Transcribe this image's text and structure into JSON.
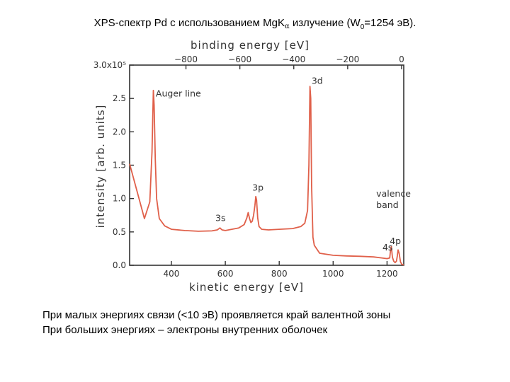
{
  "slide": {
    "title_prefix": "XPS-спектр Pd с использованием MgK",
    "title_alpha": "α",
    "title_mid": " излучение (W",
    "title_sub": "0",
    "title_suffix": "=1254 эВ).",
    "caption_1": "При малых энергиях связи (<10 эВ) проявляется край валентной зоны",
    "caption_2": "При больших энергиях – электроны внутренних оболочек"
  },
  "colors": {
    "spectrum": "#e0604a",
    "axes": "#333333"
  },
  "chart_data": {
    "type": "line",
    "xlabel": "kinetic energy  [eV]",
    "ylabel": "intensity   [arb. units]",
    "top_axis_label": "binding energy   [eV]",
    "xlim": [
      245,
      1262
    ],
    "ylim": [
      0,
      300000
    ],
    "x_ticks": [
      400,
      600,
      800,
      1000,
      1200
    ],
    "x_tick_labels": [
      "400",
      "600",
      "800",
      "1000",
      "1200"
    ],
    "y_ticks": [
      0,
      50000,
      100000,
      150000,
      200000,
      250000,
      300000
    ],
    "y_tick_labels": [
      "0.0",
      "0.5",
      "1.0",
      "1.5",
      "2.0",
      "2.5",
      "3.0x10⁵"
    ],
    "top_ticks": [
      -800,
      -600,
      -400,
      -200,
      0
    ],
    "top_tick_labels": [
      "−800",
      "−600",
      "−400",
      "−200",
      "0"
    ],
    "series": [
      {
        "x": [
          245,
          300,
          320,
          328,
          333,
          336,
          340,
          345,
          355,
          375,
          400,
          450,
          500,
          550,
          570,
          580,
          588,
          600,
          650,
          670,
          680,
          685,
          690,
          695,
          700,
          705,
          710,
          713,
          716,
          720,
          725,
          735,
          760,
          800,
          850,
          880,
          895,
          905,
          910,
          914,
          917,
          920,
          925,
          930,
          940,
          950,
          1000,
          1050,
          1100,
          1150,
          1180,
          1200,
          1210,
          1213,
          1216,
          1220,
          1225,
          1230,
          1235,
          1238,
          1241,
          1245,
          1250,
          1255,
          1262
        ],
        "y": [
          152000,
          70000,
          95000,
          170000,
          262000,
          240000,
          160000,
          100000,
          70000,
          59000,
          54000,
          52000,
          51000,
          51500,
          53000,
          56000,
          53000,
          52000,
          56000,
          61000,
          71000,
          79000,
          70000,
          64000,
          66000,
          75000,
          90000,
          103000,
          98000,
          71000,
          58000,
          54000,
          53000,
          54000,
          55000,
          58000,
          63000,
          82000,
          150000,
          268000,
          250000,
          120000,
          42000,
          30000,
          24000,
          18000,
          15000,
          14000,
          13500,
          12500,
          11000,
          10000,
          11000,
          23000,
          28000,
          12000,
          6000,
          4000,
          6000,
          14000,
          23000,
          18000,
          5000,
          1500,
          500
        ]
      }
    ],
    "annotations": [
      {
        "text": "Auger line",
        "x": 342,
        "y": 253000
      },
      {
        "text": "3d",
        "x": 920,
        "y": 272000
      },
      {
        "text": "3p",
        "x": 700,
        "y": 112000
      },
      {
        "text": "3s",
        "x": 563,
        "y": 66000
      },
      {
        "text": "valence",
        "x": 1160,
        "y": 103000
      },
      {
        "text": "band",
        "x": 1160,
        "y": 86000
      },
      {
        "text": "4p",
        "x": 1210,
        "y": 32000
      },
      {
        "text": "4s",
        "x": 1183,
        "y": 22000
      }
    ]
  }
}
